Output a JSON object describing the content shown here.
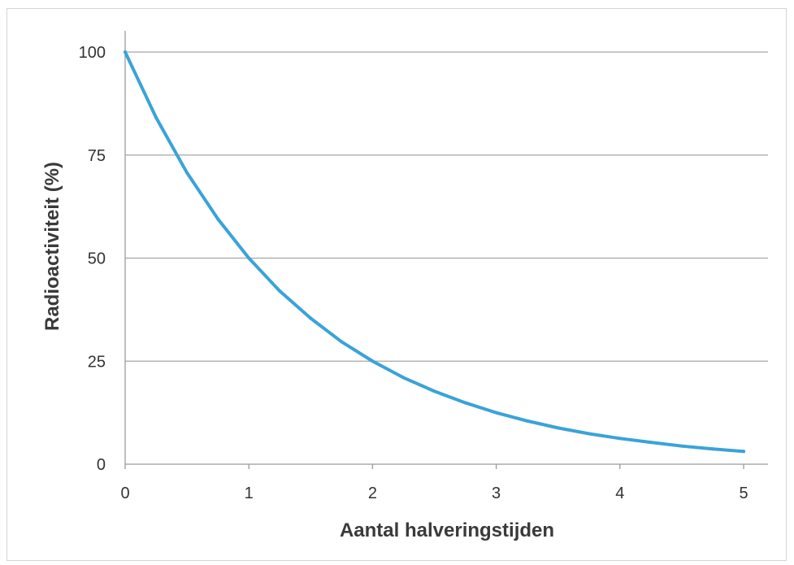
{
  "chart_data": {
    "type": "line",
    "title": "",
    "xlabel": "Aantal halveringstijden",
    "ylabel": "Radioactiviteit (%)",
    "xlim": [
      0,
      5
    ],
    "ylim": [
      0,
      100
    ],
    "x_ticks": [
      "0",
      "1",
      "2",
      "3",
      "4",
      "5"
    ],
    "y_ticks": [
      "0",
      "25",
      "50",
      "75",
      "100"
    ],
    "grid": "horizontal",
    "legend": "none",
    "series": [
      {
        "color": "#3aa3d8",
        "x": [
          0,
          0.25,
          0.5,
          0.75,
          1,
          1.25,
          1.5,
          1.75,
          2,
          2.25,
          2.5,
          2.75,
          3,
          3.25,
          3.5,
          3.75,
          4,
          4.25,
          4.5,
          4.75,
          5
        ],
        "y": [
          100,
          84.1,
          70.7,
          59.5,
          50,
          42.0,
          35.4,
          29.7,
          25,
          21.0,
          17.7,
          14.9,
          12.5,
          10.5,
          8.8,
          7.4,
          6.25,
          5.3,
          4.4,
          3.7,
          3.1
        ]
      }
    ]
  },
  "colors": {
    "line": "#3aa3d8",
    "grid": "#a6a6a6",
    "axis": "#9a9a9a"
  }
}
